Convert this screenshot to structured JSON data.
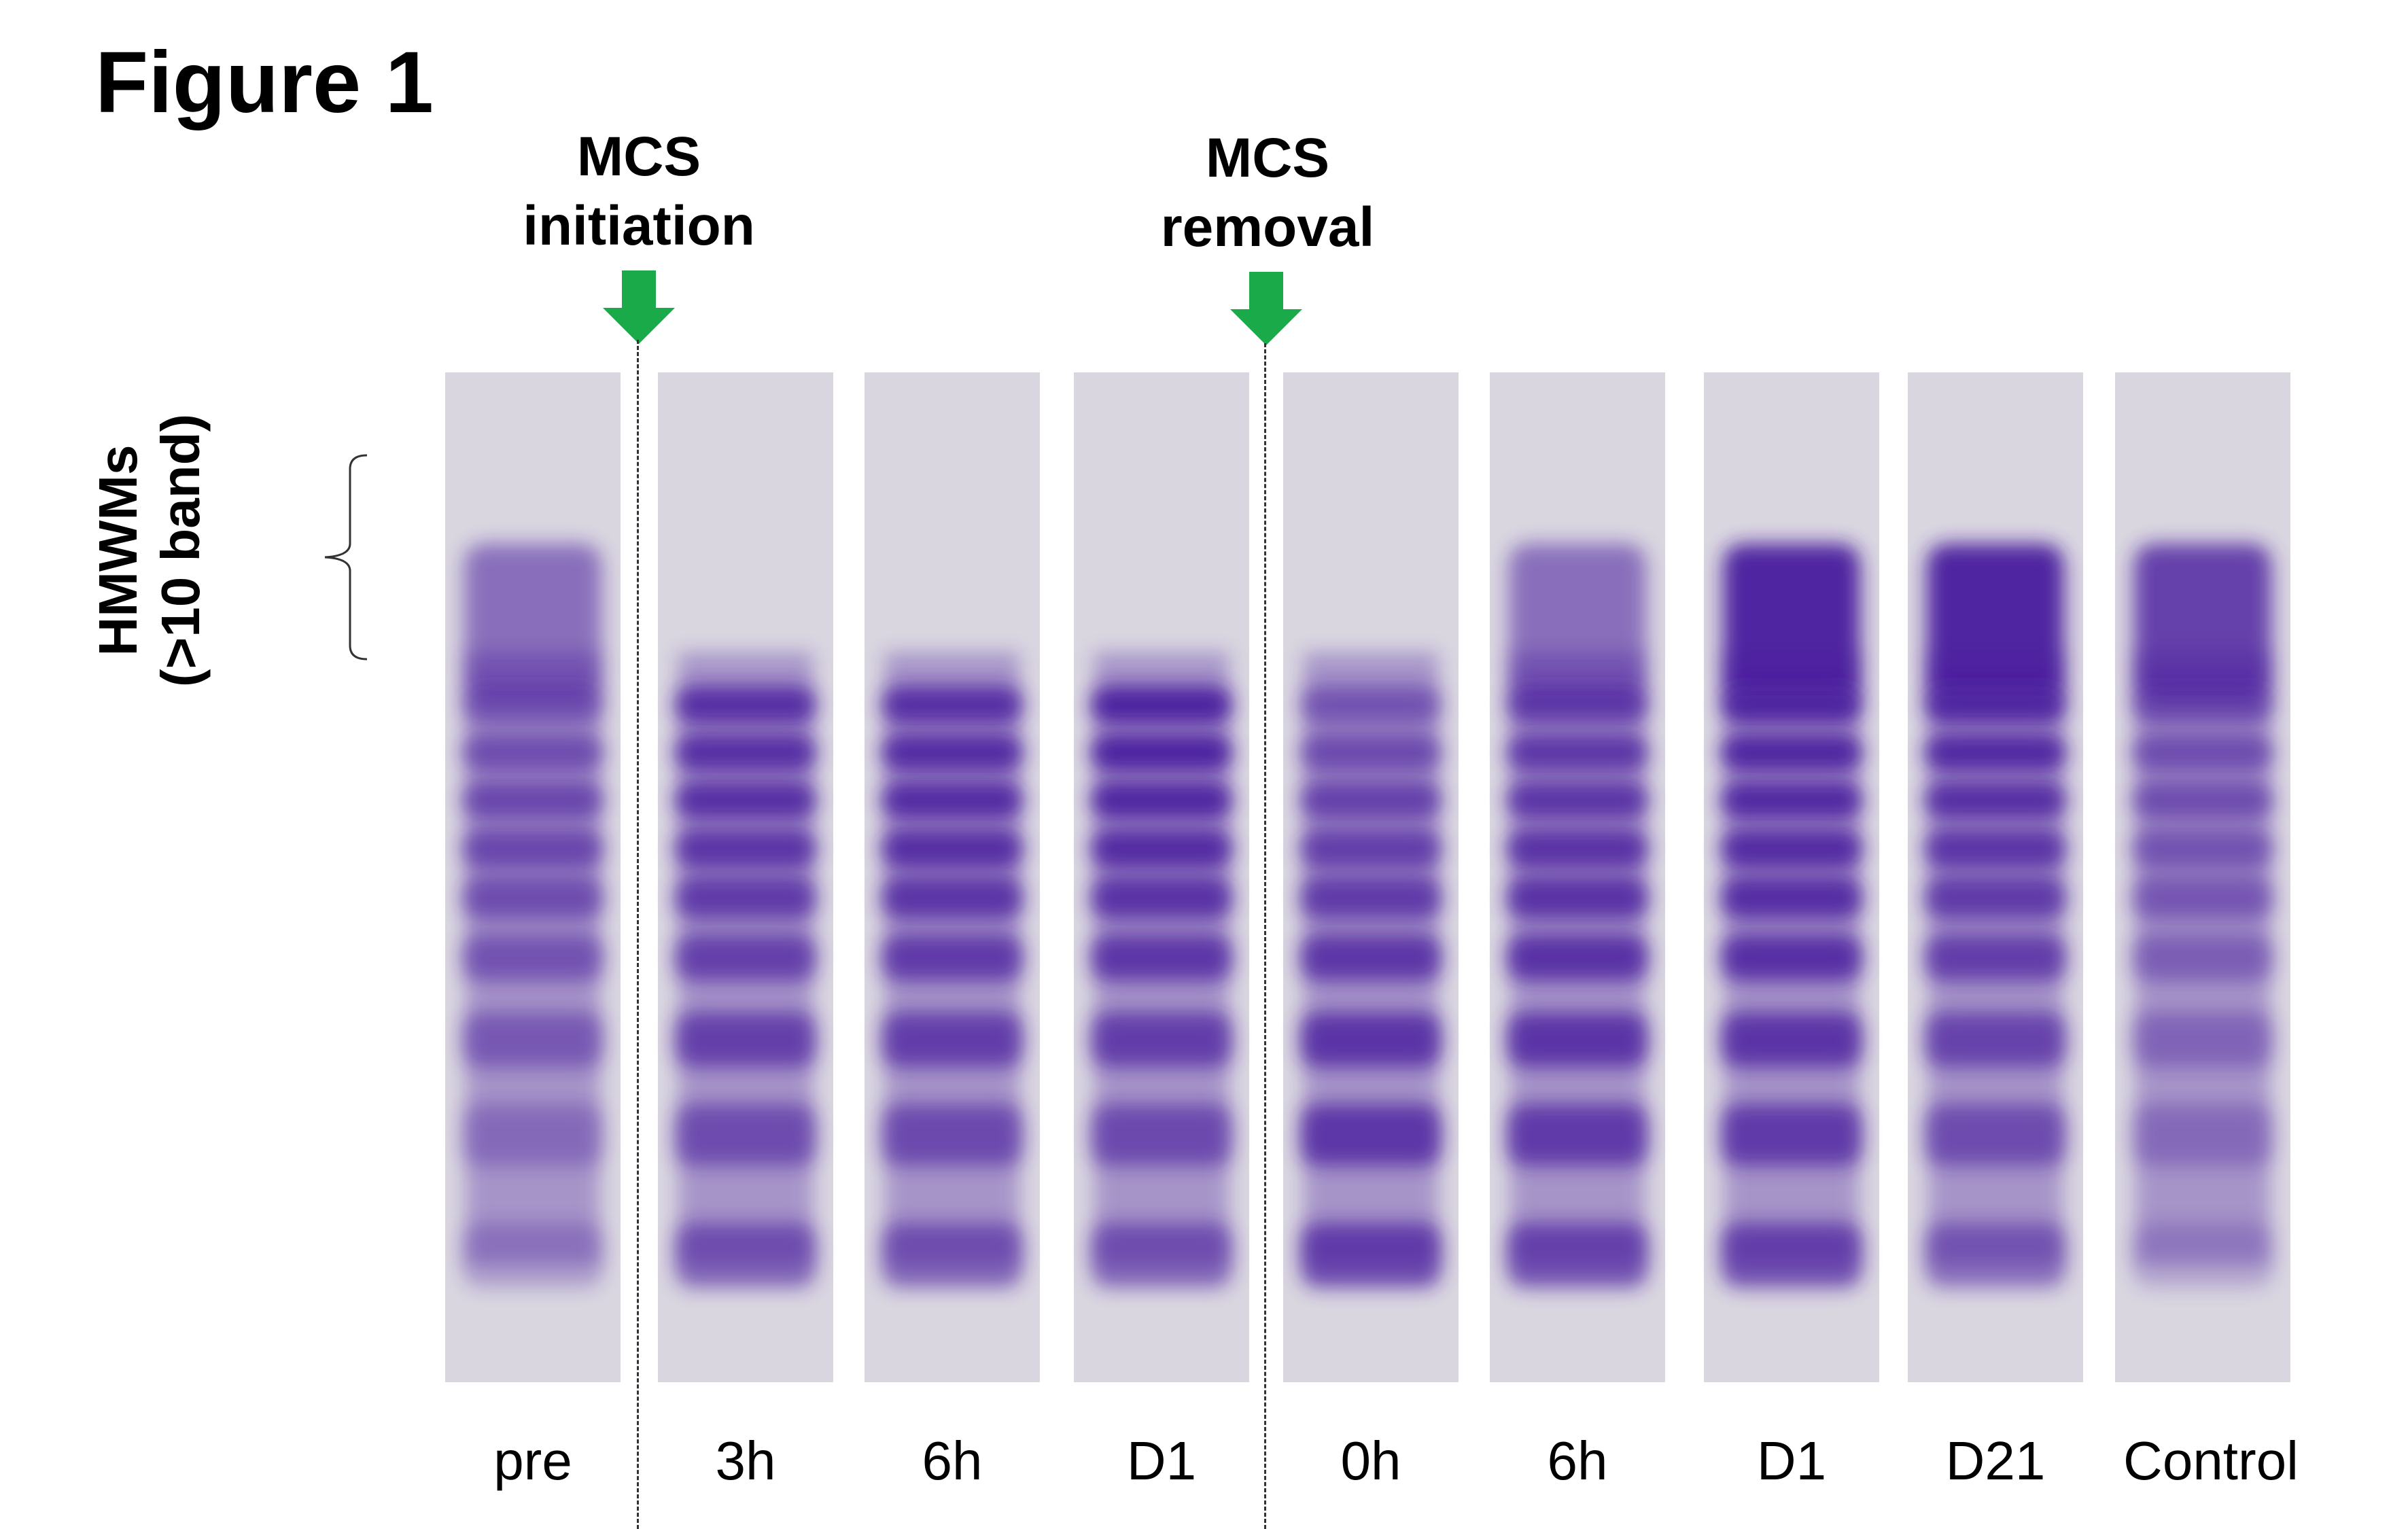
{
  "figure": {
    "title": "Figure 1"
  },
  "events": {
    "initiation": {
      "line1": "MCS",
      "line2": "initiation"
    },
    "removal": {
      "line1": "MCS",
      "line2": "removal"
    }
  },
  "y_label": {
    "line1": "HMWMs",
    "line2": "(>10 band)"
  },
  "colors": {
    "arrow": "#1aaa4a",
    "stain": "#4a1a9e",
    "lane_bg": "#d9d6e0",
    "dash": "#333333"
  },
  "lanes": [
    {
      "label": "pre",
      "top_intensity": 0.55,
      "bands": [
        0.55,
        0.6,
        0.65,
        0.65,
        0.6,
        0.55,
        0.5,
        0.35,
        0.3
      ]
    },
    {
      "label": "3h",
      "top_intensity": 0.0,
      "bands": [
        0.85,
        0.85,
        0.85,
        0.8,
        0.75,
        0.7,
        0.7,
        0.6,
        0.6
      ]
    },
    {
      "label": "6h",
      "top_intensity": 0.0,
      "bands": [
        0.85,
        0.88,
        0.88,
        0.85,
        0.8,
        0.75,
        0.72,
        0.62,
        0.6
      ]
    },
    {
      "label": "D1",
      "top_intensity": 0.0,
      "bands": [
        0.95,
        0.95,
        0.92,
        0.88,
        0.82,
        0.78,
        0.72,
        0.62,
        0.6
      ]
    },
    {
      "label": "0h",
      "top_intensity": 0.0,
      "bands": [
        0.55,
        0.62,
        0.7,
        0.72,
        0.75,
        0.78,
        0.8,
        0.78,
        0.75
      ]
    },
    {
      "label": "6h",
      "top_intensity": 0.55,
      "bands": [
        0.75,
        0.78,
        0.8,
        0.82,
        0.82,
        0.82,
        0.8,
        0.75,
        0.7
      ]
    },
    {
      "label": "D1",
      "top_intensity": 0.95,
      "bands": [
        0.92,
        0.92,
        0.9,
        0.88,
        0.86,
        0.84,
        0.8,
        0.75,
        0.72
      ]
    },
    {
      "label": "D21",
      "top_intensity": 0.95,
      "bands": [
        0.9,
        0.9,
        0.85,
        0.8,
        0.75,
        0.72,
        0.68,
        0.6,
        0.55
      ]
    },
    {
      "label": "Control",
      "top_intensity": 0.8,
      "bands": [
        0.62,
        0.6,
        0.6,
        0.55,
        0.52,
        0.45,
        0.4,
        0.35,
        0.25
      ]
    }
  ]
}
